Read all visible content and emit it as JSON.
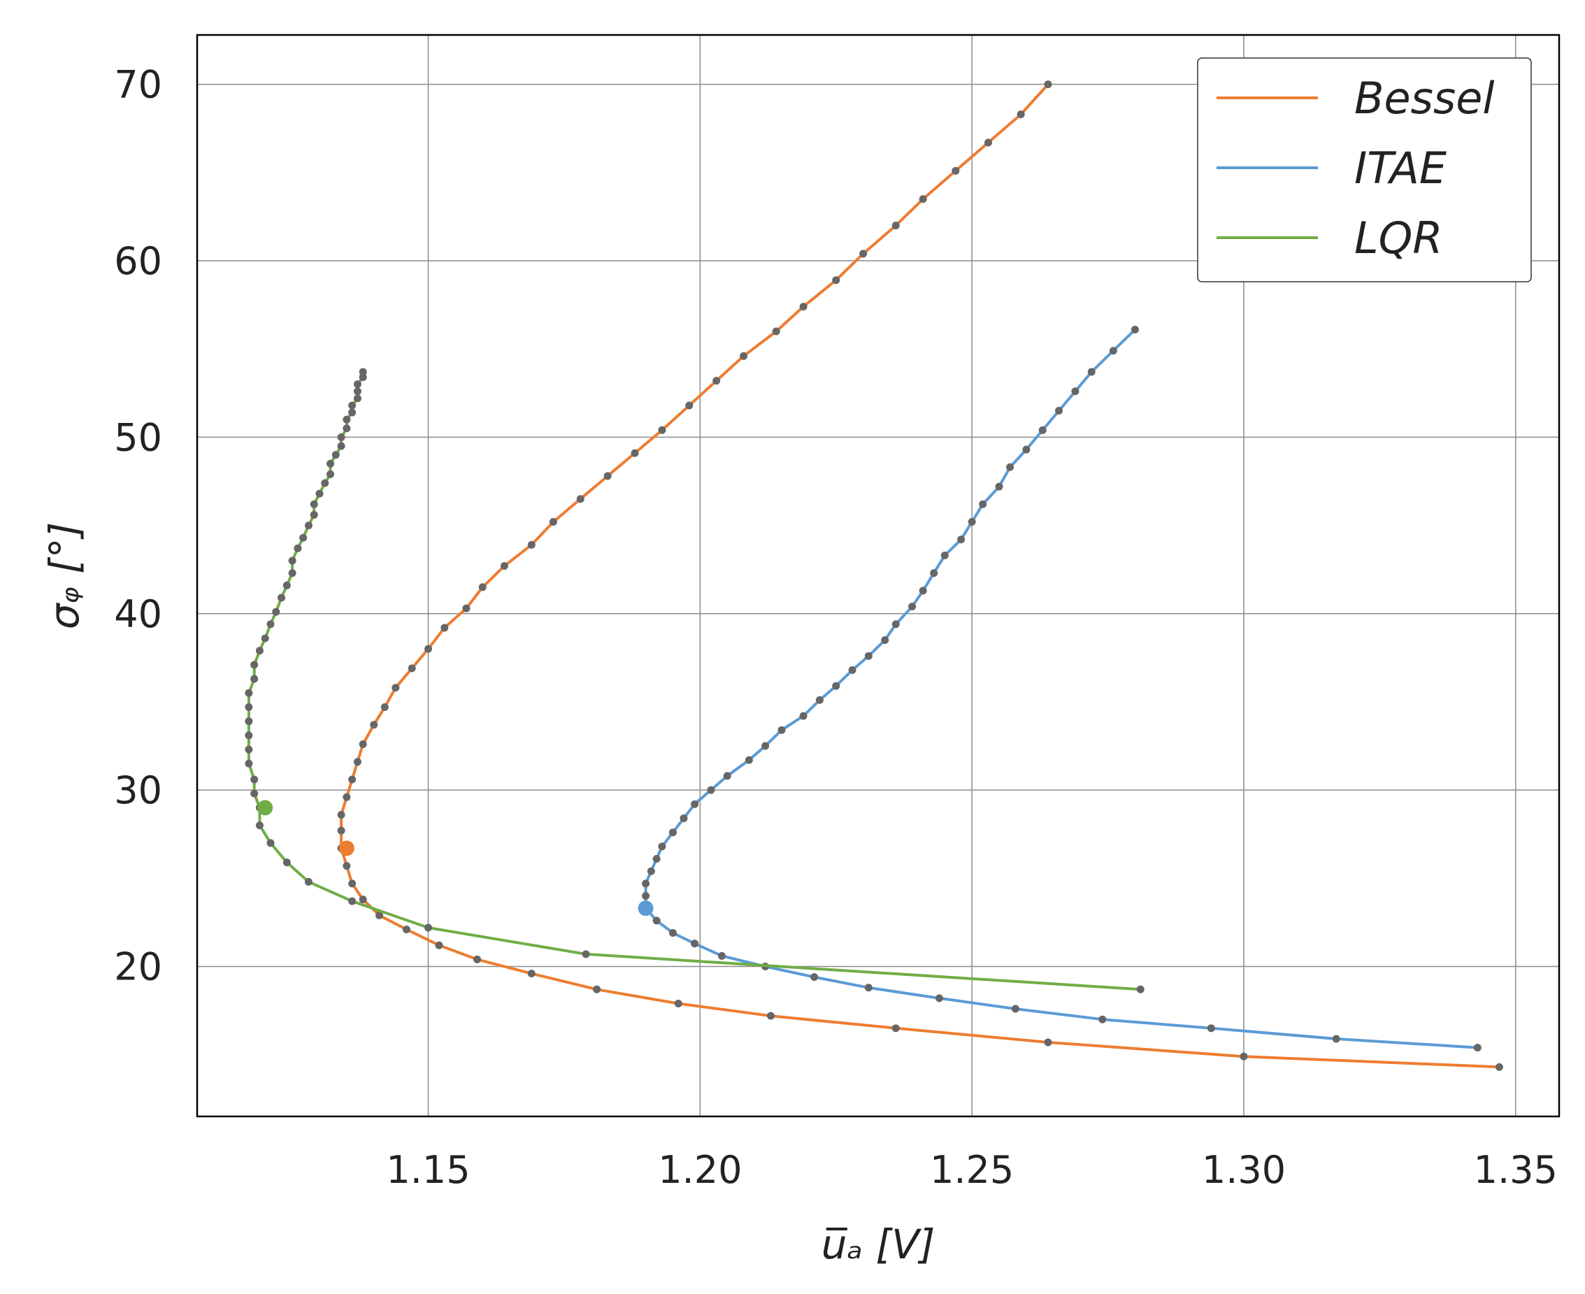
{
  "chart_data": {
    "type": "line",
    "xlabel": "u̅ₐ [V]",
    "ylabel": "σᵩ [°]",
    "xlim": [
      1.1075,
      1.358
    ],
    "ylim": [
      11.5,
      72.8
    ],
    "xticks": [
      "1.15",
      "1.20",
      "1.25",
      "1.30",
      "1.35"
    ],
    "yticks": [
      "20",
      "30",
      "40",
      "50",
      "60",
      "70"
    ],
    "xtick_values": [
      1.15,
      1.2,
      1.25,
      1.3,
      1.35
    ],
    "ytick_values": [
      20,
      30,
      40,
      50,
      60,
      70
    ],
    "grid": true,
    "legend_position": "top-right",
    "marker_color": "#666666",
    "series": [
      {
        "name": "Bessel",
        "color": "#ED7D31",
        "highlight": [
          1.135,
          26.7
        ],
        "points": [
          [
            1.347,
            14.3
          ],
          [
            1.3,
            14.9
          ],
          [
            1.264,
            15.7
          ],
          [
            1.236,
            16.5
          ],
          [
            1.213,
            17.2
          ],
          [
            1.196,
            17.9
          ],
          [
            1.181,
            18.7
          ],
          [
            1.169,
            19.6
          ],
          [
            1.159,
            20.4
          ],
          [
            1.152,
            21.2
          ],
          [
            1.146,
            22.1
          ],
          [
            1.141,
            22.9
          ],
          [
            1.138,
            23.8
          ],
          [
            1.136,
            24.7
          ],
          [
            1.135,
            25.7
          ],
          [
            1.134,
            26.7
          ],
          [
            1.134,
            27.7
          ],
          [
            1.134,
            28.6
          ],
          [
            1.135,
            29.6
          ],
          [
            1.136,
            30.6
          ],
          [
            1.137,
            31.6
          ],
          [
            1.138,
            32.6
          ],
          [
            1.14,
            33.7
          ],
          [
            1.142,
            34.7
          ],
          [
            1.144,
            35.8
          ],
          [
            1.147,
            36.9
          ],
          [
            1.15,
            38.0
          ],
          [
            1.153,
            39.2
          ],
          [
            1.157,
            40.3
          ],
          [
            1.16,
            41.5
          ],
          [
            1.164,
            42.7
          ],
          [
            1.169,
            43.9
          ],
          [
            1.173,
            45.2
          ],
          [
            1.178,
            46.5
          ],
          [
            1.183,
            47.8
          ],
          [
            1.188,
            49.1
          ],
          [
            1.193,
            50.4
          ],
          [
            1.198,
            51.8
          ],
          [
            1.203,
            53.2
          ],
          [
            1.208,
            54.6
          ],
          [
            1.214,
            56.0
          ],
          [
            1.219,
            57.4
          ],
          [
            1.225,
            58.9
          ],
          [
            1.23,
            60.4
          ],
          [
            1.236,
            62.0
          ],
          [
            1.241,
            63.5
          ],
          [
            1.247,
            65.1
          ],
          [
            1.253,
            66.7
          ],
          [
            1.259,
            68.3
          ],
          [
            1.264,
            70.0
          ]
        ]
      },
      {
        "name": "ITAE",
        "color": "#5B9BD5",
        "highlight": [
          1.19,
          23.3
        ],
        "points": [
          [
            1.343,
            15.4
          ],
          [
            1.317,
            15.9
          ],
          [
            1.294,
            16.5
          ],
          [
            1.274,
            17.0
          ],
          [
            1.258,
            17.6
          ],
          [
            1.244,
            18.2
          ],
          [
            1.231,
            18.8
          ],
          [
            1.221,
            19.4
          ],
          [
            1.212,
            20.0
          ],
          [
            1.204,
            20.6
          ],
          [
            1.199,
            21.3
          ],
          [
            1.195,
            21.9
          ],
          [
            1.192,
            22.6
          ],
          [
            1.19,
            23.3
          ],
          [
            1.19,
            24.0
          ],
          [
            1.19,
            24.7
          ],
          [
            1.191,
            25.4
          ],
          [
            1.192,
            26.1
          ],
          [
            1.193,
            26.8
          ],
          [
            1.195,
            27.6
          ],
          [
            1.197,
            28.4
          ],
          [
            1.199,
            29.2
          ],
          [
            1.202,
            30.0
          ],
          [
            1.205,
            30.8
          ],
          [
            1.209,
            31.7
          ],
          [
            1.212,
            32.5
          ],
          [
            1.215,
            33.4
          ],
          [
            1.219,
            34.2
          ],
          [
            1.222,
            35.1
          ],
          [
            1.225,
            35.9
          ],
          [
            1.228,
            36.8
          ],
          [
            1.231,
            37.6
          ],
          [
            1.234,
            38.5
          ],
          [
            1.236,
            39.4
          ],
          [
            1.239,
            40.4
          ],
          [
            1.241,
            41.3
          ],
          [
            1.243,
            42.3
          ],
          [
            1.245,
            43.3
          ],
          [
            1.248,
            44.2
          ],
          [
            1.25,
            45.2
          ],
          [
            1.252,
            46.2
          ],
          [
            1.255,
            47.2
          ],
          [
            1.257,
            48.3
          ],
          [
            1.26,
            49.3
          ],
          [
            1.263,
            50.4
          ],
          [
            1.266,
            51.5
          ],
          [
            1.269,
            52.6
          ],
          [
            1.272,
            53.7
          ],
          [
            1.276,
            54.9
          ],
          [
            1.28,
            56.1
          ]
        ]
      },
      {
        "name": "LQR",
        "color": "#70AD47",
        "highlight": [
          1.12,
          29.0
        ],
        "points": [
          [
            1.281,
            18.7
          ],
          [
            1.179,
            20.7
          ],
          [
            1.15,
            22.2
          ],
          [
            1.136,
            23.7
          ],
          [
            1.128,
            24.8
          ],
          [
            1.124,
            25.9
          ],
          [
            1.121,
            27.0
          ],
          [
            1.119,
            28.0
          ],
          [
            1.119,
            29.0
          ],
          [
            1.118,
            29.8
          ],
          [
            1.118,
            30.6
          ],
          [
            1.117,
            31.5
          ],
          [
            1.117,
            32.3
          ],
          [
            1.117,
            33.1
          ],
          [
            1.117,
            33.9
          ],
          [
            1.117,
            34.7
          ],
          [
            1.117,
            35.5
          ],
          [
            1.118,
            36.3
          ],
          [
            1.118,
            37.1
          ],
          [
            1.119,
            37.9
          ],
          [
            1.12,
            38.6
          ],
          [
            1.121,
            39.4
          ],
          [
            1.122,
            40.1
          ],
          [
            1.123,
            40.9
          ],
          [
            1.124,
            41.6
          ],
          [
            1.125,
            42.3
          ],
          [
            1.125,
            43.0
          ],
          [
            1.126,
            43.7
          ],
          [
            1.127,
            44.3
          ],
          [
            1.128,
            45.0
          ],
          [
            1.129,
            45.6
          ],
          [
            1.129,
            46.2
          ],
          [
            1.13,
            46.8
          ],
          [
            1.131,
            47.4
          ],
          [
            1.132,
            47.9
          ],
          [
            1.132,
            48.5
          ],
          [
            1.133,
            49.0
          ],
          [
            1.134,
            49.5
          ],
          [
            1.134,
            50.0
          ],
          [
            1.135,
            50.5
          ],
          [
            1.135,
            51.0
          ],
          [
            1.136,
            51.4
          ],
          [
            1.136,
            51.8
          ],
          [
            1.137,
            52.2
          ],
          [
            1.137,
            52.6
          ],
          [
            1.137,
            53.0
          ],
          [
            1.138,
            53.4
          ],
          [
            1.138,
            53.7
          ]
        ]
      }
    ]
  }
}
